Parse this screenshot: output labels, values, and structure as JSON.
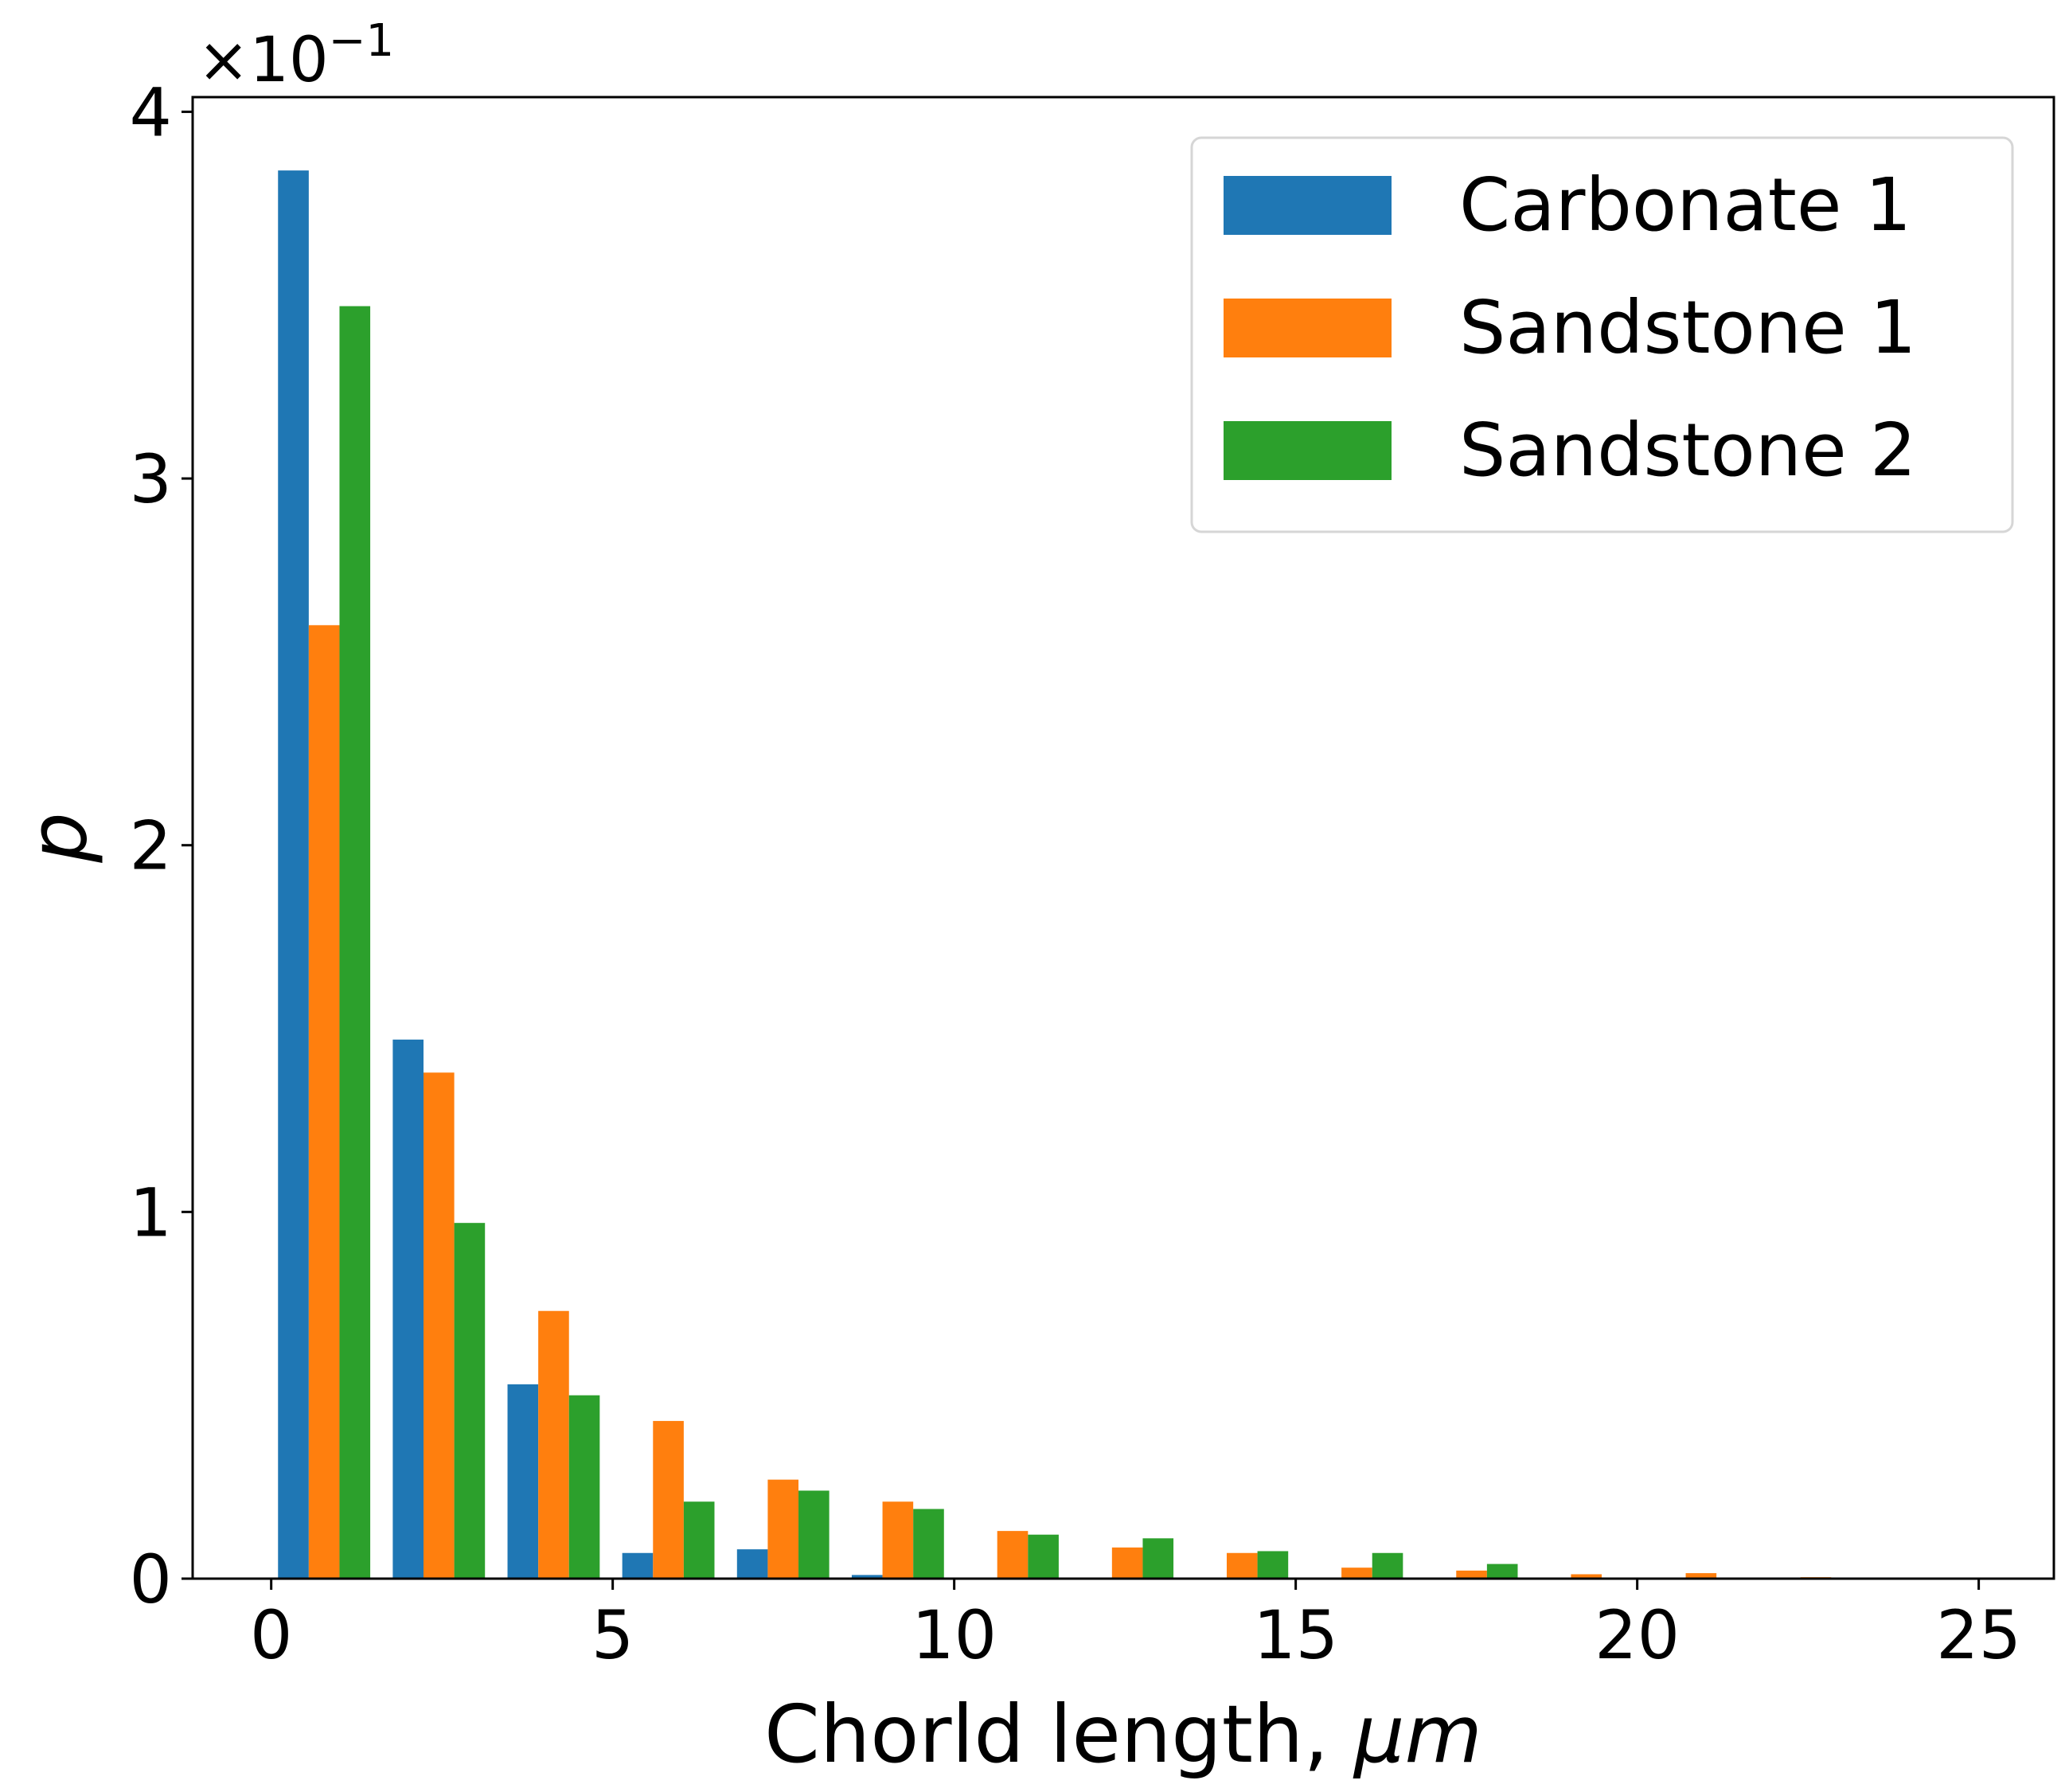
{
  "chart_data": {
    "type": "bar",
    "xlabel": "Chorld length, ",
    "xlabel_unit": "μm",
    "ylabel": "p",
    "y_scale_label": "×10",
    "y_scale_exponent": "−1",
    "xlim": [
      -1.15,
      26.1
    ],
    "ylim": [
      0,
      4.04
    ],
    "xticks": [
      "0",
      "5",
      "10",
      "15",
      "20",
      "25"
    ],
    "yticks": [
      "0",
      "1",
      "2",
      "3",
      "4"
    ],
    "bin_starts": [
      0.1,
      1.78,
      3.46,
      5.14,
      6.82,
      8.5,
      10.18,
      11.86,
      13.54,
      15.22,
      16.9,
      18.58,
      20.26,
      21.94
    ],
    "bar_width": 0.45,
    "series": [
      {
        "name": "Carbonate 1",
        "color": "#1f77b4",
        "values": [
          3.84,
          1.47,
          0.53,
          0.07,
          0.08,
          0.01,
          0,
          0,
          0,
          0,
          0,
          0,
          0,
          0
        ]
      },
      {
        "name": "Sandstone 1",
        "color": "#ff7f0e",
        "values": [
          2.6,
          1.38,
          0.73,
          0.43,
          0.27,
          0.21,
          0.13,
          0.085,
          0.07,
          0.03,
          0.022,
          0.012,
          0.015,
          0.004
        ]
      },
      {
        "name": "Sandstone 2",
        "color": "#2ca02c",
        "values": [
          3.47,
          0.97,
          0.5,
          0.21,
          0.24,
          0.19,
          0.12,
          0.11,
          0.075,
          0.07,
          0.04,
          0,
          0,
          0
        ]
      }
    ],
    "legend": {
      "position": "top-right"
    },
    "grid": false
  }
}
